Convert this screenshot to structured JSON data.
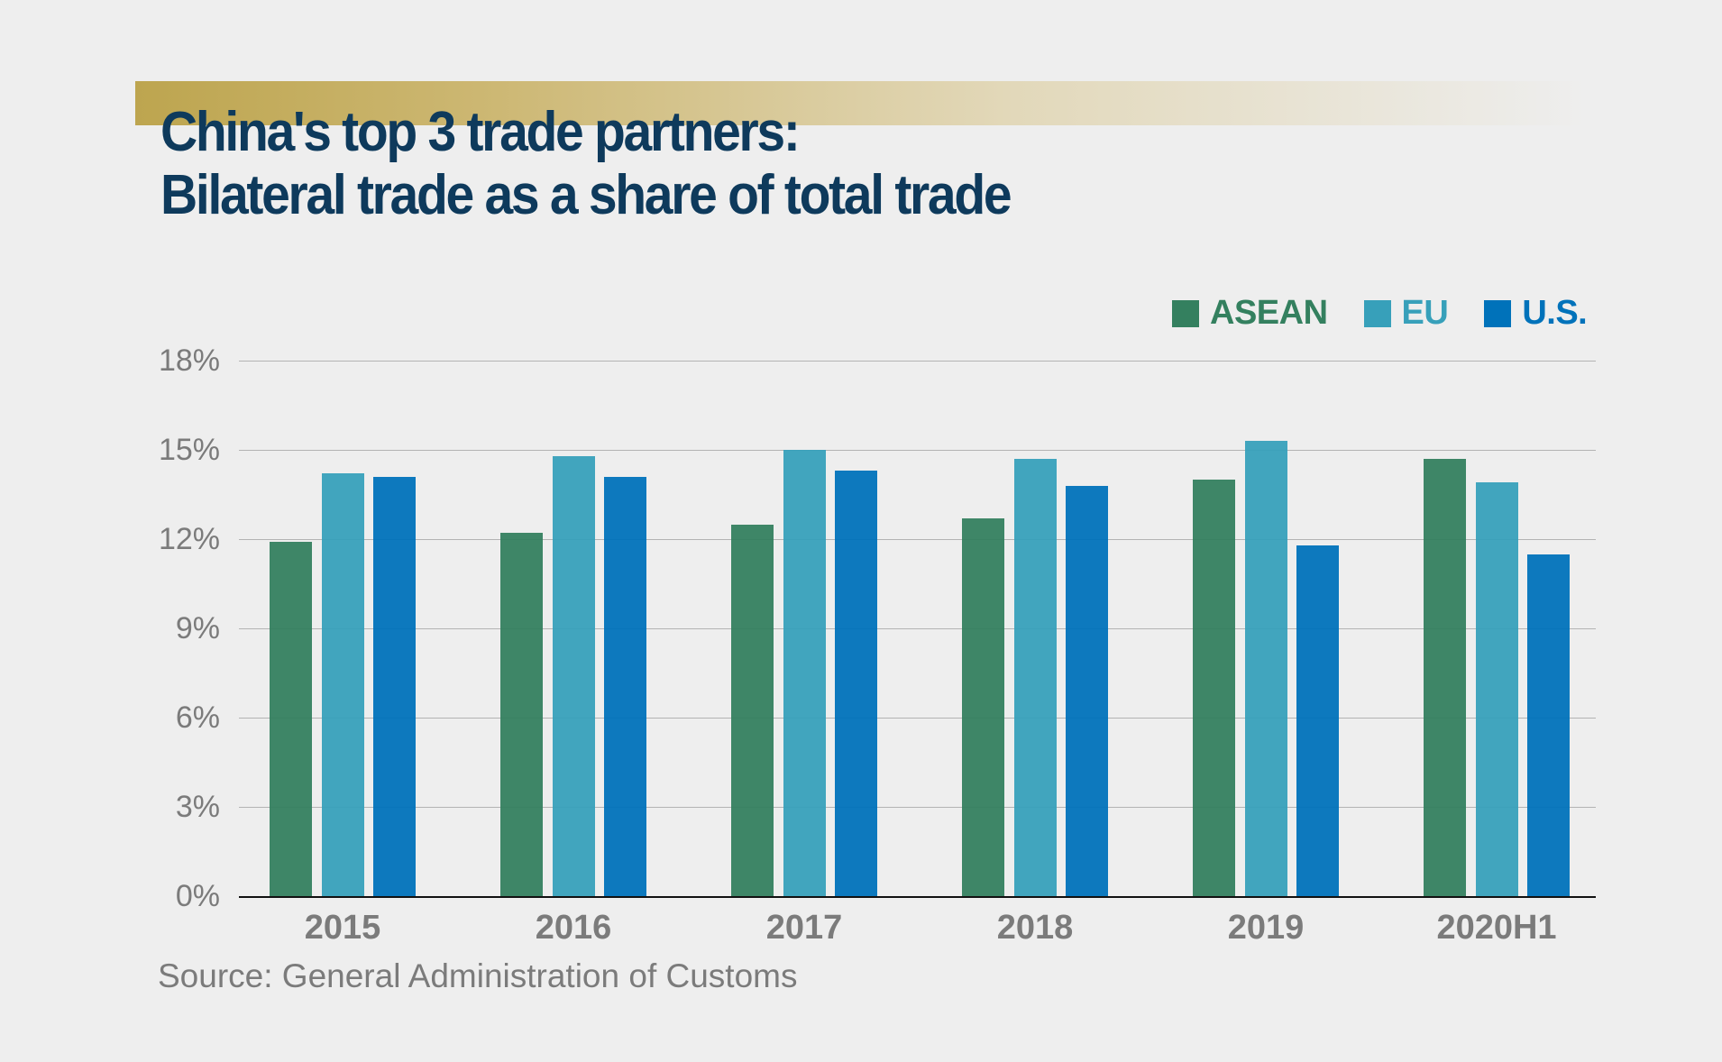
{
  "title": {
    "line1": "China's top 3 trade partners:",
    "line2": "Bilateral trade as a share of total trade"
  },
  "legend": [
    {
      "label": "ASEAN",
      "color": "#34805f"
    },
    {
      "label": "EU",
      "color": "#37a0ba"
    },
    {
      "label": "U.S.",
      "color": "#0072ba"
    }
  ],
  "y_ticks": [
    "18%",
    "15%",
    "12%",
    "9%",
    "6%",
    "3%",
    "0%"
  ],
  "source": "Source: General Administration of Customs",
  "chart_data": {
    "type": "bar",
    "title": "China's top 3 trade partners: Bilateral trade as a share of total trade",
    "xlabel": "",
    "ylabel": "",
    "categories": [
      "2015",
      "2016",
      "2017",
      "2018",
      "2019",
      "2020H1"
    ],
    "series": [
      {
        "name": "ASEAN",
        "color": "#34805f",
        "values": [
          11.9,
          12.2,
          12.5,
          12.7,
          14.0,
          14.7
        ]
      },
      {
        "name": "EU",
        "color": "#37a0ba",
        "values": [
          14.2,
          14.8,
          15.0,
          14.7,
          15.3,
          13.9
        ]
      },
      {
        "name": "U.S.",
        "color": "#0072ba",
        "values": [
          14.1,
          14.1,
          14.3,
          13.8,
          11.8,
          11.5
        ]
      }
    ],
    "ylim": [
      0,
      18
    ],
    "y_ticks": [
      0,
      3,
      6,
      9,
      12,
      15,
      18
    ],
    "y_tick_format": "percent",
    "grid": true,
    "legend_position": "top-right",
    "source": "Source: General Administration of Customs"
  }
}
